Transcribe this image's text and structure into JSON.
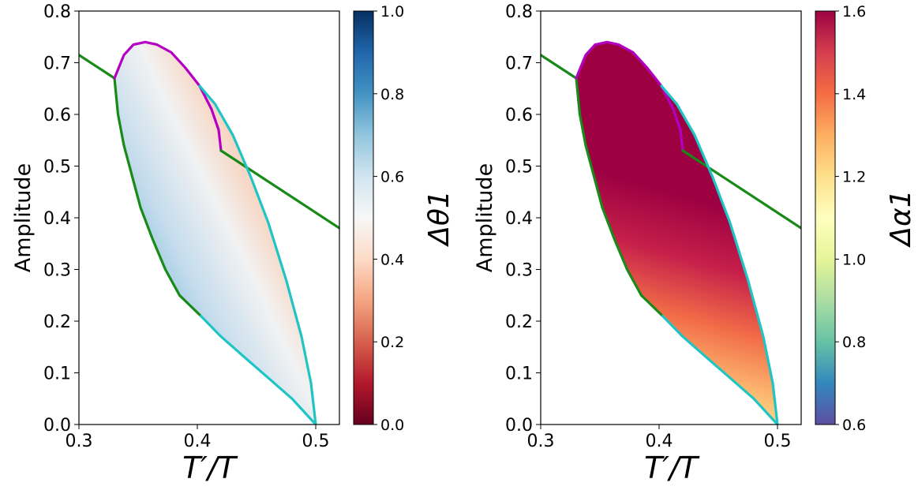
{
  "chart_data": [
    {
      "type": "heatmap",
      "title": "",
      "xlabel": "T′/T",
      "ylabel": "Amplitude",
      "xlim": [
        0.3,
        0.52
      ],
      "ylim": [
        0.0,
        0.8
      ],
      "xticks": [
        "0.3",
        "0.4",
        "0.5"
      ],
      "yticks": [
        "0.0",
        "0.1",
        "0.2",
        "0.3",
        "0.4",
        "0.5",
        "0.6",
        "0.7",
        "0.8"
      ],
      "grid": false,
      "colorbar": {
        "label": "Δθ1",
        "colormap": "RdBu",
        "range": [
          0.0,
          1.0
        ],
        "ticks": [
          "0.0",
          "0.2",
          "0.4",
          "0.6",
          "0.8",
          "1.0"
        ]
      },
      "colors": {
        "green": "#178a17",
        "magenta": "#b300c2",
        "cyan": "#1fc4c4"
      },
      "field_samples": [
        {
          "x": 0.36,
          "y": 0.6,
          "value": 0.63
        },
        {
          "x": 0.37,
          "y": 0.4,
          "value": 0.7
        },
        {
          "x": 0.4,
          "y": 0.2,
          "value": 0.72
        },
        {
          "x": 0.44,
          "y": 0.4,
          "value": 0.45
        },
        {
          "x": 0.48,
          "y": 0.2,
          "value": 0.44
        },
        {
          "x": 0.49,
          "y": 0.05,
          "value": 0.5
        }
      ],
      "series": [
        {
          "color": "green",
          "points": [
            [
              0.3,
              0.715
            ],
            [
              0.33,
              0.67
            ]
          ]
        },
        {
          "color": "green",
          "points": [
            [
              0.33,
              0.67
            ],
            [
              0.333,
              0.6
            ],
            [
              0.338,
              0.54
            ],
            [
              0.345,
              0.48
            ],
            [
              0.352,
              0.42
            ],
            [
              0.362,
              0.36
            ],
            [
              0.373,
              0.3
            ],
            [
              0.385,
              0.25
            ],
            [
              0.403,
              0.21
            ]
          ]
        },
        {
          "color": "magenta",
          "points": [
            [
              0.33,
              0.67
            ],
            [
              0.338,
              0.715
            ],
            [
              0.346,
              0.735
            ],
            [
              0.356,
              0.74
            ],
            [
              0.366,
              0.735
            ],
            [
              0.378,
              0.72
            ],
            [
              0.39,
              0.69
            ],
            [
              0.402,
              0.655
            ],
            [
              0.412,
              0.61
            ],
            [
              0.418,
              0.57
            ],
            [
              0.42,
              0.53
            ]
          ]
        },
        {
          "color": "green",
          "points": [
            [
              0.42,
              0.53
            ],
            [
              0.52,
              0.38
            ]
          ]
        },
        {
          "color": "cyan",
          "points": [
            [
              0.402,
              0.655
            ],
            [
              0.415,
              0.62
            ],
            [
              0.43,
              0.56
            ],
            [
              0.445,
              0.48
            ],
            [
              0.46,
              0.39
            ],
            [
              0.475,
              0.28
            ],
            [
              0.488,
              0.17
            ],
            [
              0.496,
              0.08
            ],
            [
              0.5,
              0.0
            ]
          ]
        },
        {
          "color": "cyan",
          "points": [
            [
              0.403,
              0.21
            ],
            [
              0.42,
              0.17
            ],
            [
              0.44,
              0.13
            ],
            [
              0.46,
              0.09
            ],
            [
              0.48,
              0.05
            ],
            [
              0.5,
              0.0
            ]
          ]
        }
      ]
    },
    {
      "type": "heatmap",
      "title": "",
      "xlabel": "T′/T",
      "ylabel": "Amplitude",
      "xlim": [
        0.3,
        0.52
      ],
      "ylim": [
        0.0,
        0.8
      ],
      "xticks": [
        "0.3",
        "0.4",
        "0.5"
      ],
      "yticks": [
        "0.0",
        "0.1",
        "0.2",
        "0.3",
        "0.4",
        "0.5",
        "0.6",
        "0.7",
        "0.8"
      ],
      "grid": false,
      "colorbar": {
        "label": "Δα1",
        "colormap": "Spectral_r",
        "range": [
          0.6,
          1.6
        ],
        "ticks": [
          "0.6",
          "0.8",
          "1.0",
          "1.2",
          "1.4",
          "1.6"
        ]
      },
      "colors": {
        "green": "#178a17",
        "magenta": "#b300c2",
        "cyan": "#1fc4c4"
      },
      "field_samples": [
        {
          "x": 0.37,
          "y": 0.6,
          "value": 1.6
        },
        {
          "x": 0.43,
          "y": 0.4,
          "value": 1.6
        },
        {
          "x": 0.36,
          "y": 0.4,
          "value": 1.45
        },
        {
          "x": 0.41,
          "y": 0.2,
          "value": 1.35
        },
        {
          "x": 0.47,
          "y": 0.15,
          "value": 1.3
        },
        {
          "x": 0.49,
          "y": 0.04,
          "value": 1.15
        }
      ],
      "series": [
        {
          "color": "green",
          "points": [
            [
              0.3,
              0.715
            ],
            [
              0.33,
              0.67
            ]
          ]
        },
        {
          "color": "green",
          "points": [
            [
              0.33,
              0.67
            ],
            [
              0.333,
              0.6
            ],
            [
              0.338,
              0.54
            ],
            [
              0.345,
              0.48
            ],
            [
              0.352,
              0.42
            ],
            [
              0.362,
              0.36
            ],
            [
              0.373,
              0.3
            ],
            [
              0.385,
              0.25
            ],
            [
              0.403,
              0.21
            ]
          ]
        },
        {
          "color": "magenta",
          "points": [
            [
              0.33,
              0.67
            ],
            [
              0.338,
              0.715
            ],
            [
              0.346,
              0.735
            ],
            [
              0.356,
              0.74
            ],
            [
              0.366,
              0.735
            ],
            [
              0.378,
              0.72
            ],
            [
              0.39,
              0.69
            ],
            [
              0.402,
              0.655
            ],
            [
              0.412,
              0.61
            ],
            [
              0.418,
              0.57
            ],
            [
              0.42,
              0.53
            ]
          ]
        },
        {
          "color": "green",
          "points": [
            [
              0.42,
              0.53
            ],
            [
              0.52,
              0.38
            ]
          ]
        },
        {
          "color": "cyan",
          "points": [
            [
              0.402,
              0.655
            ],
            [
              0.415,
              0.62
            ],
            [
              0.43,
              0.56
            ],
            [
              0.445,
              0.48
            ],
            [
              0.46,
              0.39
            ],
            [
              0.475,
              0.28
            ],
            [
              0.488,
              0.17
            ],
            [
              0.496,
              0.08
            ],
            [
              0.5,
              0.0
            ]
          ]
        },
        {
          "color": "cyan",
          "points": [
            [
              0.403,
              0.21
            ],
            [
              0.42,
              0.17
            ],
            [
              0.44,
              0.13
            ],
            [
              0.46,
              0.09
            ],
            [
              0.48,
              0.05
            ],
            [
              0.5,
              0.0
            ]
          ]
        }
      ]
    }
  ]
}
